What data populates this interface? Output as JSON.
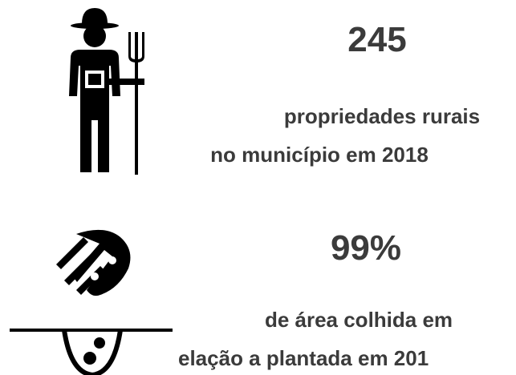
{
  "stats": [
    {
      "value": "245",
      "lines": [
        "propriedades rurais",
        "no município em 2018"
      ]
    },
    {
      "value": "99%",
      "lines": [
        "de área colhida em",
        "elação a plantada em 201"
      ]
    }
  ]
}
